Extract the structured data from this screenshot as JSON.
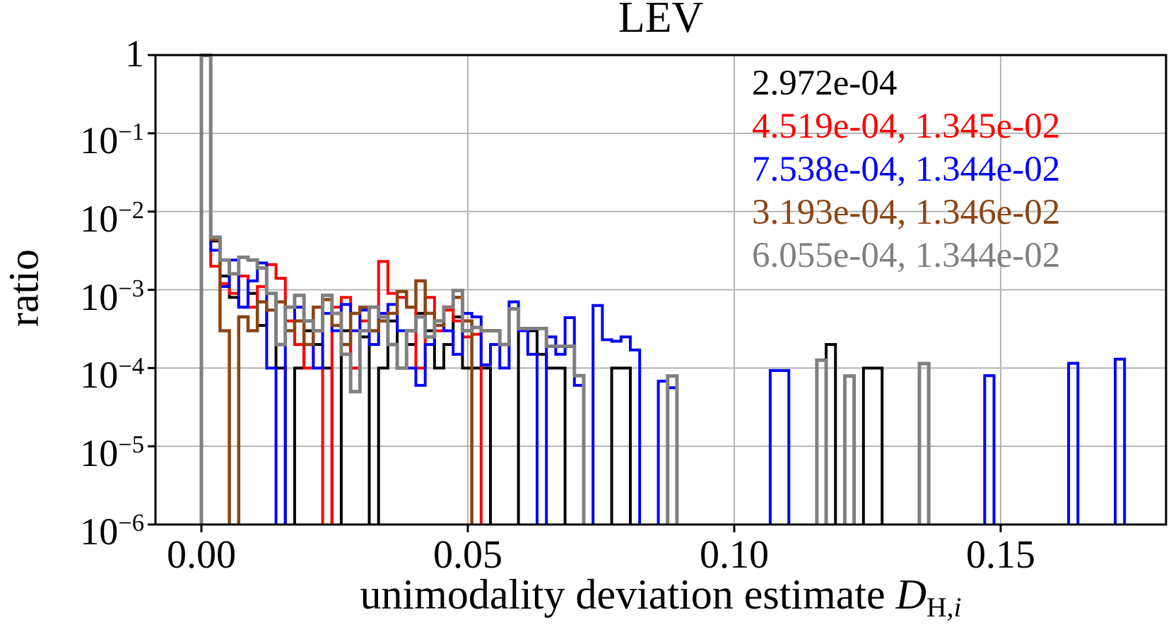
{
  "title": "LEV",
  "ylabel": "ratio",
  "xlabel": {
    "text": "unimodality deviation estimate ",
    "var": "D",
    "sub": "H,",
    "sub_i": "i"
  },
  "axes": {
    "x_range": [
      -0.00862,
      0.18104
    ],
    "x_ticks": [
      {
        "v": 0.0,
        "label": "0.00"
      },
      {
        "v": 0.05,
        "label": "0.05"
      },
      {
        "v": 0.1,
        "label": "0.10"
      },
      {
        "v": 0.15,
        "label": "0.15"
      }
    ],
    "y_ticks": [
      {
        "exp": 0,
        "label": "1"
      },
      {
        "exp": -1,
        "sup": "−1"
      },
      {
        "exp": -2,
        "sup": "−2"
      },
      {
        "exp": -3,
        "sup": "−3"
      },
      {
        "exp": -4,
        "sup": "−4"
      },
      {
        "exp": -5,
        "sup": "−5"
      },
      {
        "exp": -6,
        "sup": "−6"
      }
    ],
    "y_scale": "log",
    "grid": true,
    "grid_color": "#b4b4b4",
    "frame_color": "#000000"
  },
  "legend": {
    "position": "top-right"
  },
  "chart_data": {
    "type": "step-histogram",
    "y_scale": "log",
    "ylim": [
      1e-06,
      1
    ],
    "bin_start": 0,
    "bin_width": 0.00175,
    "series": [
      {
        "name": "black",
        "color": "#000000",
        "stroke_width": 4,
        "legend": "2.972e-04",
        "values": [
          0.99,
          0.0042,
          0.0015,
          0.0008,
          0.0006,
          0.0009,
          0.00035,
          0.00055,
          0.0001,
          0,
          0.0001,
          0.0003,
          0.0002,
          0.0001,
          0,
          0.0003,
          0.0001,
          0.00025,
          0,
          0.0001,
          0.0004,
          0.0001,
          0.0002,
          0.0005,
          0.0003,
          0.0001,
          0.0002,
          0.00045,
          0.0001,
          0.0001,
          0.0001,
          0,
          0,
          0,
          0.0003,
          0.0003,
          0.00015,
          0.0001,
          0.0001,
          0,
          0,
          0,
          0,
          0,
          0.0001,
          0.0001,
          0,
          0,
          0,
          0,
          0,
          0,
          0,
          0,
          0,
          0,
          0,
          0,
          0,
          0,
          0,
          0,
          0,
          0,
          0,
          0,
          0,
          0.0002,
          0,
          0,
          0,
          0.0001,
          0.0001
        ]
      },
      {
        "name": "red",
        "color": "#ff0000",
        "stroke_width": 4,
        "legend": "4.519e-04, 1.345e-02",
        "values": [
          0.988,
          0.002,
          0.0012,
          0.0009,
          0.0015,
          0.0006,
          0.0011,
          0.0021,
          0.0014,
          0.0004,
          0.0002,
          0.0001,
          0.0003,
          0,
          0.0006,
          0.0008,
          0.0001,
          0.0004,
          0.0003,
          0.0023,
          0.0009,
          0.0008,
          0.0006,
          0.0001,
          0.0008,
          0.0003,
          0.00055,
          0.0004,
          0.00025,
          0.00027
        ]
      },
      {
        "name": "blue",
        "color": "#0000ff",
        "stroke_width": 4,
        "legend": "7.538e-04, 1.344e-02",
        "values": [
          0.988,
          0.0032,
          0.0011,
          0.0024,
          0.0006,
          0.0013,
          0.0022,
          0.0001,
          0,
          0.0003,
          0.0006,
          0.0002,
          0.0001,
          0.0005,
          0.0003,
          0.00065,
          0.0003,
          0.00055,
          0.0002,
          0.0005,
          0.00065,
          0.0003,
          0.0001,
          6e-05,
          0.0002,
          0.0004,
          0.0003,
          0.00015,
          0.0005,
          0.00045,
          0.00011,
          0.0002,
          0.0001,
          0.0007,
          0.0003,
          0.00015,
          0,
          0.00025,
          0.00015,
          0.00044,
          6e-05,
          0,
          0.00063,
          0.00023,
          0.00022,
          0.00025,
          0.00017,
          0,
          0,
          6.8e-05,
          5.6e-05,
          0,
          0,
          0,
          0,
          0,
          0,
          0,
          0,
          0,
          0,
          9.3e-05,
          9.3e-05,
          0,
          0,
          0,
          0,
          0,
          0,
          0,
          0,
          0,
          0,
          0,
          0,
          0,
          0,
          0,
          0,
          0,
          0,
          0,
          0,
          0,
          8e-05,
          0,
          0,
          0,
          0,
          0,
          0,
          0,
          0,
          0.000115,
          0,
          0,
          0,
          0,
          0.00013
        ]
      },
      {
        "name": "brown",
        "color": "#8b4513",
        "stroke_width": 4.5,
        "legend": "3.193e-04, 1.346e-02",
        "values": [
          0.988,
          0.0044,
          0.0003,
          0,
          0.00045,
          0.0003,
          0.0007,
          0.00055,
          0.0007,
          0.0003,
          0.0004,
          0.0002,
          0.0006,
          0.00075,
          0.00035,
          0.0002,
          0.0005,
          0.0006,
          0.0003,
          0.0004,
          0.0005,
          0.00095,
          0.0006,
          0.0013,
          0.0005,
          0.00035,
          0.0006,
          0.0008,
          0.0004
        ]
      },
      {
        "name": "gray",
        "color": "#808080",
        "stroke_width": 5,
        "legend": "6.055e-04, 1.344e-02",
        "values": [
          0.995,
          0.0047,
          0.0024,
          0.0016,
          0.0026,
          0.0024,
          0.0019,
          0.0009,
          0.0002,
          0.0006,
          0.00085,
          0.0004,
          0.0003,
          0.00085,
          0.0005,
          0.00015,
          5e-05,
          0.0003,
          0.0006,
          0.00045,
          0.0002,
          0.0001,
          0.0003,
          0.00045,
          0.00025,
          0.0004,
          0.0006,
          0.00098,
          0.0003,
          0.00033,
          0.0003,
          0.0003,
          0.0002,
          0.00057,
          0.00032,
          0.00032,
          0.00032,
          0.00019,
          0.00019,
          0.00019,
          8e-05,
          0,
          0,
          0,
          0,
          0,
          0,
          0,
          0,
          0,
          7.9e-05,
          0,
          0,
          0,
          0,
          0,
          0,
          0,
          0,
          0,
          0,
          0,
          0,
          0,
          0,
          0,
          0.000126,
          0,
          0,
          7.9e-05,
          0,
          0,
          0,
          0,
          0,
          0,
          0,
          0.000114
        ]
      }
    ]
  }
}
